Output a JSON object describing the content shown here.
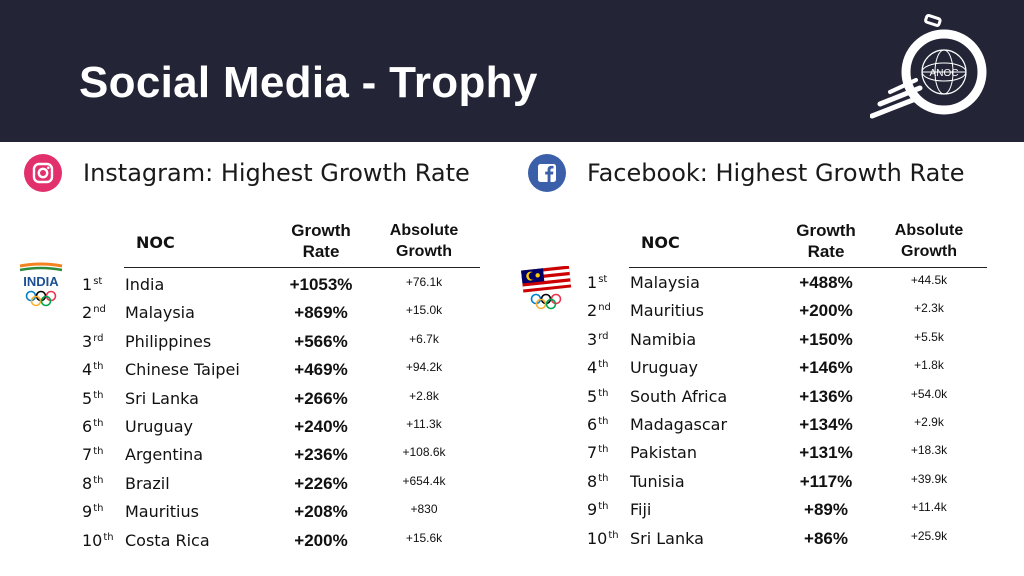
{
  "header": {
    "title": "Social Media - Trophy",
    "logo_text": "ANOC",
    "bg_color": "#232537"
  },
  "instagram": {
    "icon": "instagram-icon",
    "title": "Instagram: Highest Growth Rate",
    "emblem_text": "INDIA",
    "columns": {
      "noc": "NOC",
      "rate": "Growth\nRate",
      "abs": "Absolute\nGrowth"
    },
    "rows": [
      {
        "rank": "1",
        "suffix": "st",
        "noc": "India",
        "rate": "+1053%",
        "abs": "+76.1k"
      },
      {
        "rank": "2",
        "suffix": "nd",
        "noc": "Malaysia",
        "rate": "+869%",
        "abs": "+15.0k"
      },
      {
        "rank": "3",
        "suffix": "rd",
        "noc": "Philippines",
        "rate": "+566%",
        "abs": "+6.7k"
      },
      {
        "rank": "4",
        "suffix": "th",
        "noc": "Chinese Taipei",
        "rate": "+469%",
        "abs": "+94.2k"
      },
      {
        "rank": "5",
        "suffix": "th",
        "noc": "Sri Lanka",
        "rate": "+266%",
        "abs": "+2.8k"
      },
      {
        "rank": "6",
        "suffix": "th",
        "noc": "Uruguay",
        "rate": "+240%",
        "abs": "+11.3k"
      },
      {
        "rank": "7",
        "suffix": "th",
        "noc": "Argentina",
        "rate": "+236%",
        "abs": "+108.6k"
      },
      {
        "rank": "8",
        "suffix": "th",
        "noc": "Brazil",
        "rate": "+226%",
        "abs": "+654.4k"
      },
      {
        "rank": "9",
        "suffix": "th",
        "noc": "Mauritius",
        "rate": "+208%",
        "abs": "+830"
      },
      {
        "rank": "10",
        "suffix": "th",
        "noc": "Costa Rica",
        "rate": "+200%",
        "abs": "+15.6k"
      }
    ]
  },
  "facebook": {
    "icon": "facebook-icon",
    "title": "Facebook: Highest Growth Rate",
    "columns": {
      "noc": "NOC",
      "rate": "Growth\nRate",
      "abs": "Absolute\nGrowth"
    },
    "rows": [
      {
        "rank": "1",
        "suffix": "st",
        "noc": "Malaysia",
        "rate": "+488%",
        "abs": "+44.5k"
      },
      {
        "rank": "2",
        "suffix": "nd",
        "noc": "Mauritius",
        "rate": "+200%",
        "abs": "+2.3k"
      },
      {
        "rank": "3",
        "suffix": "rd",
        "noc": "Namibia",
        "rate": "+150%",
        "abs": "+5.5k"
      },
      {
        "rank": "4",
        "suffix": "th",
        "noc": "Uruguay",
        "rate": "+146%",
        "abs": "+1.8k"
      },
      {
        "rank": "5",
        "suffix": "th",
        "noc": "South Africa",
        "rate": "+136%",
        "abs": "+54.0k"
      },
      {
        "rank": "6",
        "suffix": "th",
        "noc": "Madagascar",
        "rate": "+134%",
        "abs": "+2.9k"
      },
      {
        "rank": "7",
        "suffix": "th",
        "noc": "Pakistan",
        "rate": "+131%",
        "abs": "+18.3k"
      },
      {
        "rank": "8",
        "suffix": "th",
        "noc": "Tunisia",
        "rate": "+117%",
        "abs": "+39.9k"
      },
      {
        "rank": "9",
        "suffix": "th",
        "noc": "Fiji",
        "rate": "+89%",
        "abs": "+11.4k"
      },
      {
        "rank": "10",
        "suffix": "th",
        "noc": "Sri Lanka",
        "rate": "+86%",
        "abs": "+25.9k"
      }
    ]
  }
}
